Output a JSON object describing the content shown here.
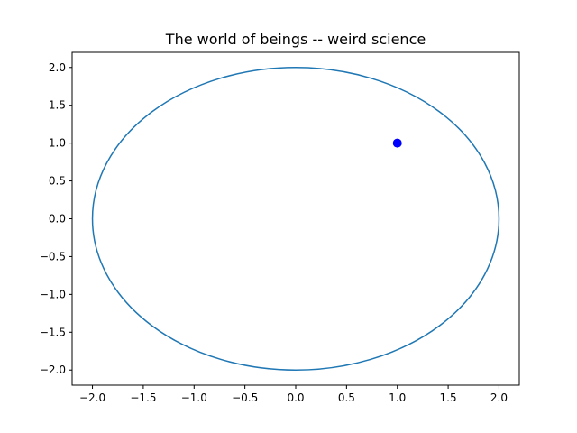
{
  "chart_data": {
    "type": "scatter",
    "title": "The world of beings -- weird science",
    "xlabel": "",
    "ylabel": "",
    "xlim": [
      -2.2,
      2.2
    ],
    "ylim": [
      -2.2,
      2.2
    ],
    "xticks": [
      -2.0,
      -1.5,
      -1.0,
      -0.5,
      0.0,
      0.5,
      1.0,
      1.5,
      2.0
    ],
    "yticks": [
      -2.0,
      -1.5,
      -1.0,
      -0.5,
      0.0,
      0.5,
      1.0,
      1.5,
      2.0
    ],
    "xtick_labels": [
      "−2.0",
      "−1.5",
      "−1.0",
      "−0.5",
      "0.0",
      "0.5",
      "1.0",
      "1.5",
      "2.0"
    ],
    "ytick_labels": [
      "−2.0",
      "−1.5",
      "−1.0",
      "−0.5",
      "0.0",
      "0.5",
      "1.0",
      "1.5",
      "2.0"
    ],
    "grid": false,
    "circle": {
      "center": [
        0,
        0
      ],
      "radius": 2,
      "color": "#1f77b4"
    },
    "point": {
      "x": 1.0,
      "y": 1.0,
      "color": "#0000ff"
    }
  }
}
